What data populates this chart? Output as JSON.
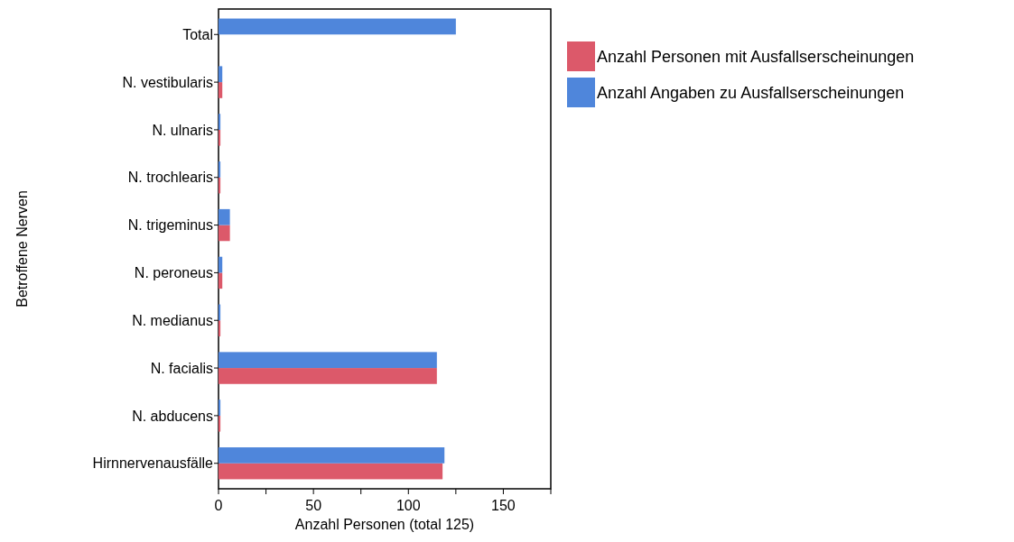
{
  "chart_data": {
    "type": "bar",
    "orientation": "horizontal",
    "xlabel": "Anzahl Personen (total 125)",
    "ylabel": "Betroffene Nerven",
    "categories": [
      "Total",
      "N. vestibularis",
      "N. ulnaris",
      "N. trochlearis",
      "N. trigeminus",
      "N. peroneus",
      "N. medianus",
      "N. facialis",
      "N. abducens",
      "Hirnnervenausfälle"
    ],
    "series": [
      {
        "name": "Anzahl Personen mit Ausfallserscheinungen",
        "color": "#dc596a",
        "values": [
          null,
          2,
          1,
          1,
          6,
          2,
          1,
          115,
          1,
          118
        ]
      },
      {
        "name": "Anzahl Angaben zu Ausfallserscheinungen",
        "color": "#4f86db",
        "values": [
          125,
          2,
          1,
          1,
          6,
          2,
          1,
          115,
          1,
          119
        ]
      }
    ],
    "xlim": [
      0,
      175
    ],
    "xticks": [
      0,
      {
        "value": 25,
        "label": null
      },
      50,
      {
        "value": 75,
        "label": null
      },
      100,
      {
        "value": 125,
        "label": null
      },
      150,
      {
        "value": 175,
        "label": null
      }
    ],
    "grid": false,
    "legend": "top right"
  }
}
